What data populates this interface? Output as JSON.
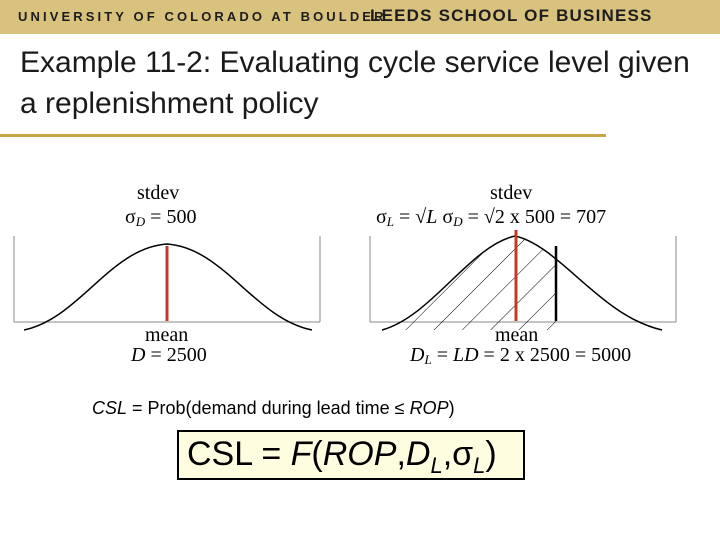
{
  "header": {
    "university": "UNIVERSITY OF COLORADO AT BOULDER",
    "school": "LEEDS SCHOOL OF BUSINESS"
  },
  "title": "Example 11-2: Evaluating cycle service level given a replenishment policy",
  "left_chart": {
    "stdev_label": "stdev",
    "sigma": "σ",
    "sigma_sub": "D",
    "stdev_value": " = 500",
    "mean_label": "mean",
    "mean_var": "D",
    "mean_value": " = 2500"
  },
  "right_chart": {
    "stdev_label": "stdev",
    "sigma": "σ",
    "sigma_sub": "L",
    "eq1": " = √",
    "L": "L",
    "sigma2": " σ",
    "sigma2_sub": "D",
    "eq2": " = √2 x 500 = 707",
    "mean_label": "mean",
    "mean_var": "D",
    "mean_sub": "L",
    "mean_eq": " = ",
    "mean_LD": "LD",
    "mean_value": " = 2 x 2500 = 5000"
  },
  "csl_definition": {
    "prefix": "CSL",
    "text": " = Prob(demand during lead time ≤ ",
    "rop": "ROP",
    "suffix": ")"
  },
  "csl_formula": {
    "lhs": "CSL = ",
    "F": "F",
    "open": "(",
    "rop": "ROP",
    "comma": ",",
    "D": "D",
    "D_sub": "L",
    "comma2": ",",
    "sigma": "σ",
    "sigma_sub": "L",
    "close": ")"
  },
  "colors": {
    "banner": "#d9c27e",
    "rule": "#c9a645",
    "mean_line": "#c0392b",
    "formula_box": "#fffde0"
  }
}
